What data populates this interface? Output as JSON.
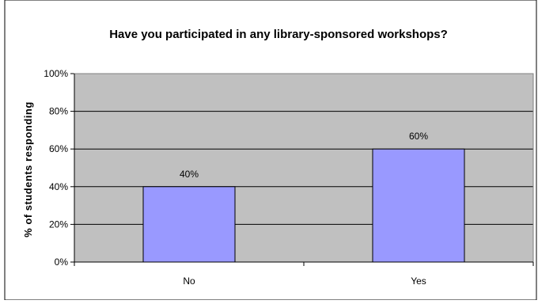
{
  "chart_data": {
    "type": "bar",
    "title": "Have you participated in any library-sponsored workshops?",
    "xlabel": "",
    "ylabel": "% of students responding",
    "categories": [
      "No",
      "Yes"
    ],
    "values": [
      40,
      60
    ],
    "data_labels": [
      "40%",
      "60%"
    ],
    "y_ticks": [
      "0%",
      "20%",
      "40%",
      "60%",
      "80%",
      "100%"
    ],
    "ylim": [
      0,
      100
    ],
    "grid": true,
    "legend": "none",
    "colors": {
      "bar_fill": "#9999ff",
      "bar_stroke": "#000000",
      "plot_background": "#c0c0c0",
      "gridline": "#000000",
      "frame_border": "#000000"
    }
  }
}
